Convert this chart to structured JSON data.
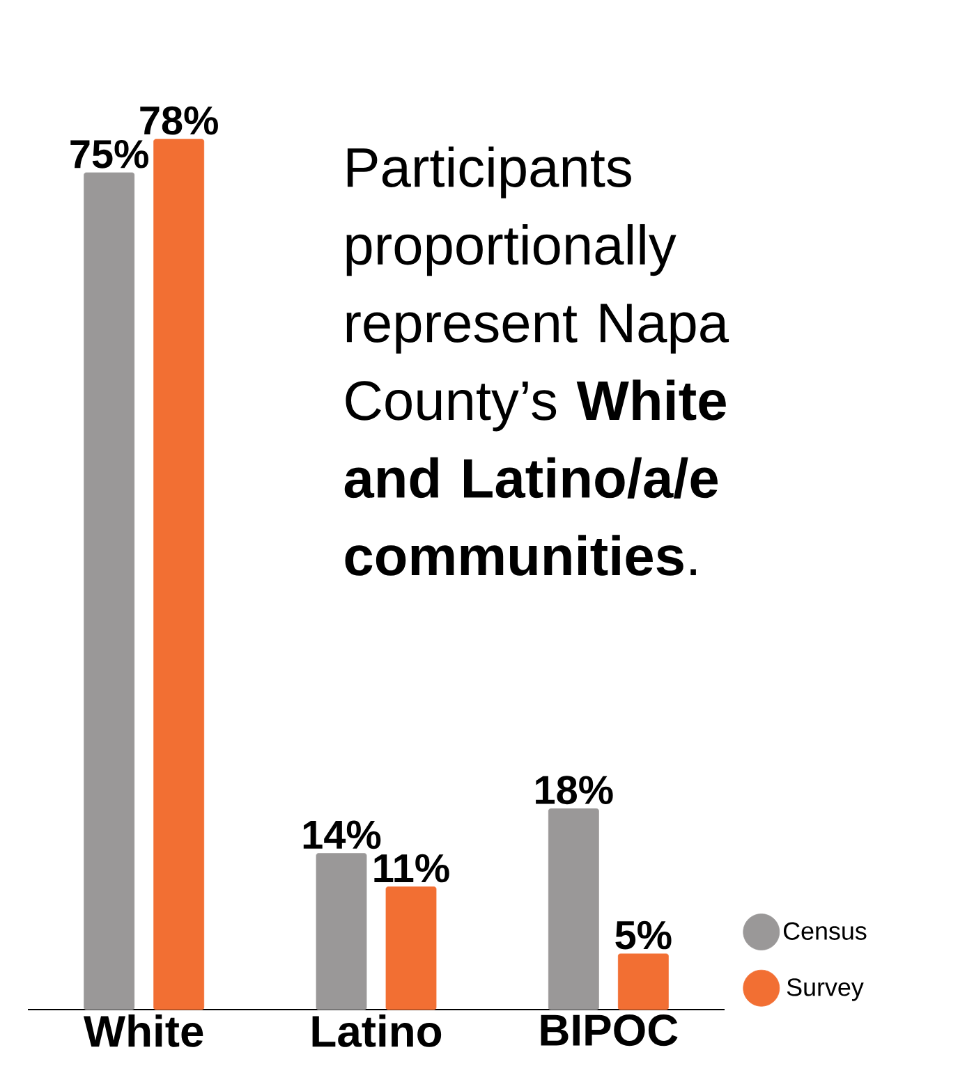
{
  "chart_data": {
    "type": "bar",
    "categories": [
      "White",
      "Latino",
      "BIPOC"
    ],
    "series": [
      {
        "name": "Census",
        "color": "#9a9898",
        "values": [
          75,
          14,
          18
        ],
        "value_labels": [
          "75%",
          "14%",
          "18%"
        ]
      },
      {
        "name": "Survey",
        "color": "#f26f33",
        "values": [
          78,
          11,
          5
        ],
        "value_labels": [
          "78%",
          "11%",
          "5%"
        ]
      }
    ],
    "ylim": [
      0,
      78
    ],
    "tick_labels": "x",
    "legend": "bottom right",
    "grid": false,
    "annotations": [
      "Participants proportionally represent Napa County’s **White and Latino/a/e communities**."
    ]
  }
}
